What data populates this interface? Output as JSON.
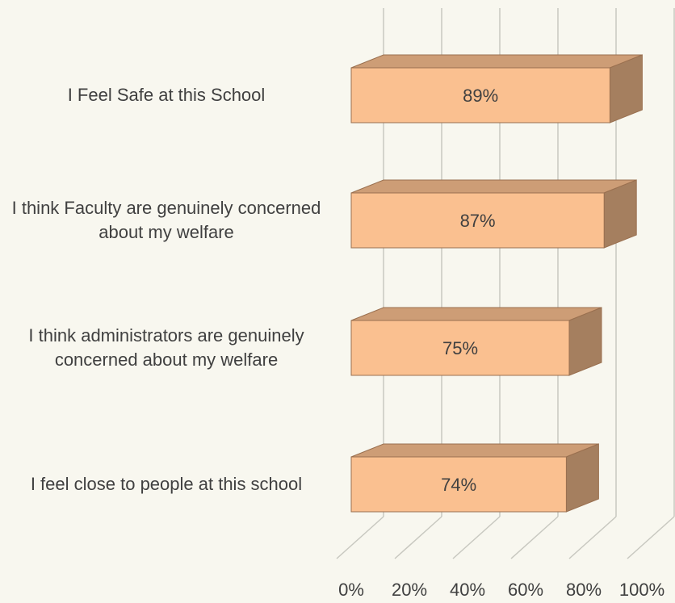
{
  "chart_data": {
    "type": "bar3d",
    "orientation": "horizontal",
    "categories": [
      "I Feel Safe at this School",
      "I think Faculty are genuinely concerned about my welfare",
      "I think administrators are genuinely concerned about my welfare",
      "I feel close to people at this school"
    ],
    "values": [
      89,
      87,
      75,
      74
    ],
    "value_labels": [
      "89%",
      "87%",
      "75%",
      "74%"
    ],
    "color": "#fac090",
    "xlim": [
      0,
      100
    ],
    "xticks": [
      {
        "value": 0,
        "label": "0%"
      },
      {
        "value": 20,
        "label": "20%"
      },
      {
        "value": 40,
        "label": "40%"
      },
      {
        "value": 60,
        "label": "60%"
      },
      {
        "value": 80,
        "label": "80%"
      },
      {
        "value": 100,
        "label": "100%"
      }
    ],
    "grid": true
  }
}
